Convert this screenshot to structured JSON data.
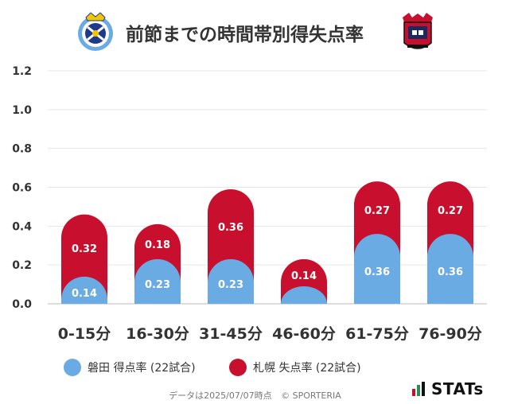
{
  "title": "前節までの時間帯別得失点率",
  "chart_data": {
    "type": "bar",
    "stacked": true,
    "categories": [
      "0-15分",
      "16-30分",
      "31-45分",
      "46-60分",
      "61-75分",
      "76-90分"
    ],
    "series": [
      {
        "name": "磐田 得点率 (22試合)",
        "color": "#6aabe3",
        "values": [
          0.14,
          0.23,
          0.23,
          0.09,
          0.36,
          0.36
        ],
        "labels": [
          "0.14",
          "0.23",
          "0.23",
          "",
          "0.36",
          "0.36"
        ]
      },
      {
        "name": "札幌 失点率 (22試合)",
        "color": "#c8102e",
        "values": [
          0.32,
          0.18,
          0.36,
          0.14,
          0.27,
          0.27
        ],
        "labels": [
          "0.32",
          "0.18",
          "0.36",
          "0.14",
          "0.27",
          "0.27"
        ]
      }
    ],
    "yticks": [
      "0.0",
      "0.2",
      "0.4",
      "0.6",
      "0.8",
      "1.0",
      "1.2"
    ],
    "ylim": [
      0,
      1.2
    ],
    "grid": true
  },
  "legend": [
    {
      "label": "磐田 得点率 (22試合)",
      "color": "#6aabe3"
    },
    {
      "label": "札幌 失点率 (22試合)",
      "color": "#c8102e"
    }
  ],
  "footer": {
    "date_text": "データは2025/07/07時点",
    "copyright": "© SPORTERIA"
  },
  "brand": {
    "name": "STATs"
  }
}
